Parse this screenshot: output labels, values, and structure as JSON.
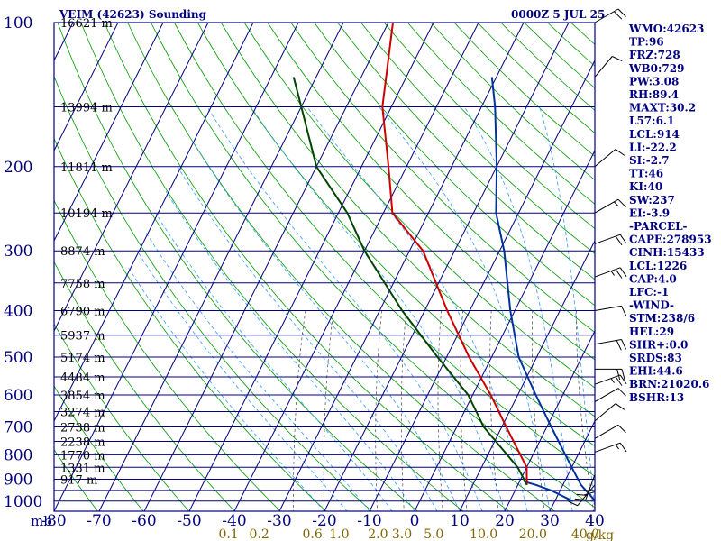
{
  "chart_data": {
    "type": "line",
    "title": "VEIM (42623) Sounding",
    "date": "0000Z  5 JUL 25",
    "pressure_unit": "mb",
    "mixing_unit": "g/kg",
    "xlim": [
      -80,
      40
    ],
    "ylim": [
      100,
      1050
    ],
    "p_ticks": [
      {
        "p": 100,
        "label": "100"
      },
      {
        "p": 200,
        "label": "200"
      },
      {
        "p": 300,
        "label": "300"
      },
      {
        "p": 400,
        "label": "400"
      },
      {
        "p": 500,
        "label": "500"
      },
      {
        "p": 600,
        "label": "600"
      },
      {
        "p": 700,
        "label": "700"
      },
      {
        "p": 800,
        "label": "800"
      },
      {
        "p": 900,
        "label": "900"
      },
      {
        "p": 1000,
        "label": "1000"
      }
    ],
    "t_ticks": [
      {
        "t": -80,
        "label": "-80"
      },
      {
        "t": -70,
        "label": "-70"
      },
      {
        "t": -60,
        "label": "-60"
      },
      {
        "t": -50,
        "label": "-50"
      },
      {
        "t": -40,
        "label": "-40"
      },
      {
        "t": -30,
        "label": "-30"
      },
      {
        "t": -20,
        "label": "-20"
      },
      {
        "t": -10,
        "label": "-10"
      },
      {
        "t": 0,
        "label": "0"
      },
      {
        "t": 10,
        "label": "10"
      },
      {
        "t": 20,
        "label": "20"
      },
      {
        "t": 30,
        "label": "30"
      },
      {
        "t": 40,
        "label": "40"
      }
    ],
    "heights": [
      {
        "p": 100,
        "label": "16621 m"
      },
      {
        "p": 150,
        "label": "13994 m"
      },
      {
        "p": 200,
        "label": "11811 m"
      },
      {
        "p": 250,
        "label": "10194 m"
      },
      {
        "p": 300,
        "label": "8874 m"
      },
      {
        "p": 350,
        "label": "7758 m"
      },
      {
        "p": 400,
        "label": "6790 m"
      },
      {
        "p": 450,
        "label": "5937 m"
      },
      {
        "p": 500,
        "label": "5174 m"
      },
      {
        "p": 550,
        "label": "4484 m"
      },
      {
        "p": 600,
        "label": "3854 m"
      },
      {
        "p": 650,
        "label": "3274 m"
      },
      {
        "p": 700,
        "label": "2738 m"
      },
      {
        "p": 750,
        "label": "2238 m"
      },
      {
        "p": 800,
        "label": "1770 m"
      },
      {
        "p": 850,
        "label": "1331 m"
      },
      {
        "p": 900,
        "label": "917 m"
      }
    ],
    "mixing_ratios": [
      {
        "w": 0.1,
        "label": "0.1"
      },
      {
        "w": 0.2,
        "label": "0.2"
      },
      {
        "w": 0.6,
        "label": "0.6"
      },
      {
        "w": 1.0,
        "label": "1.0"
      },
      {
        "w": 2.0,
        "label": "2.0"
      },
      {
        "w": 3.0,
        "label": "3.0"
      },
      {
        "w": 5.0,
        "label": "5.0"
      },
      {
        "w": 10.0,
        "label": "10.0"
      },
      {
        "w": 20.0,
        "label": "20.0"
      },
      {
        "w": 40.0,
        "label": "40.0"
      }
    ],
    "series": [
      {
        "id": "environment_temperature",
        "color": "#003399",
        "points": [
          [
            1000,
            39
          ],
          [
            925,
            34
          ],
          [
            850,
            30
          ],
          [
            700,
            21
          ],
          [
            600,
            14
          ],
          [
            500,
            6
          ],
          [
            400,
            -1
          ],
          [
            300,
            -9
          ],
          [
            250,
            -15
          ],
          [
            200,
            -20
          ],
          [
            150,
            -27
          ],
          [
            130,
            -31
          ]
        ]
      },
      {
        "id": "dewpoint",
        "color": "#003399",
        "points": [
          [
            1000,
            34
          ],
          [
            950,
            28
          ],
          [
            925,
            24
          ],
          [
            910,
            21
          ]
        ]
      },
      {
        "id": "parcel_path_red",
        "color": "#cc0000",
        "points": [
          [
            925,
            22
          ],
          [
            850,
            20
          ],
          [
            700,
            11
          ],
          [
            600,
            4
          ],
          [
            500,
            -5
          ],
          [
            400,
            -15
          ],
          [
            300,
            -27
          ],
          [
            250,
            -38
          ],
          [
            200,
            -44
          ],
          [
            150,
            -52
          ],
          [
            100,
            -59
          ]
        ]
      },
      {
        "id": "parcel_path_green",
        "color": "#004400",
        "points": [
          [
            925,
            22
          ],
          [
            850,
            18
          ],
          [
            700,
            6
          ],
          [
            600,
            -1
          ],
          [
            500,
            -12
          ],
          [
            400,
            -25
          ],
          [
            300,
            -40
          ],
          [
            250,
            -48
          ],
          [
            200,
            -60
          ],
          [
            150,
            -70
          ],
          [
            130,
            -75
          ]
        ]
      }
    ],
    "winds": [
      {
        "p": 100,
        "dir": 60,
        "spd": 20
      },
      {
        "p": 130,
        "dir": 40,
        "spd": 10
      },
      {
        "p": 200,
        "dir": 50,
        "spd": 10
      },
      {
        "p": 250,
        "dir": 60,
        "spd": 5
      },
      {
        "p": 290,
        "dir": 70,
        "spd": 20
      },
      {
        "p": 340,
        "dir": 70,
        "spd": 15
      },
      {
        "p": 400,
        "dir": 80,
        "spd": 10
      },
      {
        "p": 470,
        "dir": 80,
        "spd": 20
      },
      {
        "p": 530,
        "dir": 90,
        "spd": 20
      },
      {
        "p": 570,
        "dir": 70,
        "spd": 15
      },
      {
        "p": 620,
        "dir": 60,
        "spd": 10
      },
      {
        "p": 680,
        "dir": 50,
        "spd": 10
      },
      {
        "p": 740,
        "dir": 60,
        "spd": 10
      },
      {
        "p": 790,
        "dir": 70,
        "spd": 5
      },
      {
        "p": 840,
        "dir": 180,
        "spd": 10
      },
      {
        "p": 880,
        "dir": 200,
        "spd": 15
      },
      {
        "p": 925,
        "dir": 220,
        "spd": 10
      }
    ],
    "indices": [
      "WMO:42623",
      "TP:96",
      "FRZ:728",
      "WB0:729",
      "PW:3.08",
      "RH:89.4",
      "MAXT:30.2",
      "L57:6.1",
      "LCL:914",
      "LI:-22.2",
      "SI:-2.7",
      "TT:46",
      "KI:40",
      "SW:237",
      "EI:-3.9",
      "-PARCEL-",
      "CAPE:278953",
      "CINH:15433",
      "LCL:1226",
      "CAP:4.0",
      "LFC:-1",
      "-WIND-",
      "STM:238/6",
      "HEL:29",
      "SHR+:0.0",
      "SRDS:83",
      "EHI:44.6",
      "BRN:21020.6",
      "BSHR:13"
    ]
  },
  "colors": {
    "background": "#ffffff",
    "axis": "#000080",
    "isotherm": "#000080",
    "isobar": "#000080",
    "dry_adiabat": "#009900",
    "moist_adiabat": "#3399ff",
    "mixing_ratio": "#444444",
    "label_text": "#000080",
    "height_text": "#000000",
    "mixing_text": "#806600"
  }
}
